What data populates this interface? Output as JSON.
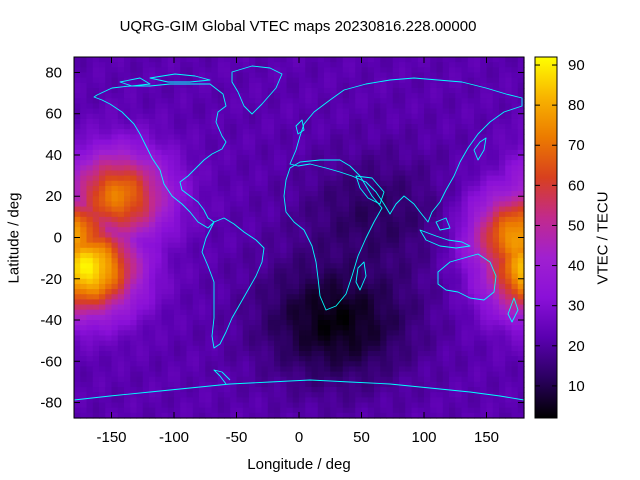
{
  "chart_data": {
    "type": "heatmap",
    "title": "UQRG-GIM Global VTEC maps 20230816.228.00000",
    "xlabel": "Longitude / deg",
    "ylabel": "Latitude / deg",
    "colorbar_label": "VTEC / TECU",
    "x_range": [
      -180,
      180
    ],
    "y_range": [
      -87.5,
      87.5
    ],
    "color_range": [
      2,
      92
    ],
    "x_ticks": [
      -150,
      -100,
      -50,
      0,
      50,
      100,
      150
    ],
    "y_ticks": [
      -80,
      -60,
      -40,
      -20,
      0,
      20,
      40,
      60,
      80
    ],
    "colorbar_ticks": [
      10,
      20,
      30,
      40,
      50,
      60,
      70,
      80,
      90
    ],
    "colormap": [
      "#000000",
      "#2b0060",
      "#5a00b0",
      "#8a10d8",
      "#a020d0",
      "#c22a8c",
      "#d8401e",
      "#ec7b00",
      "#f8b400",
      "#ffff00"
    ],
    "coastline_color": "#00ffff",
    "vtec_structure": {
      "background_tecu": 22,
      "peaks": [
        {
          "lon": -170,
          "lat": -15,
          "tecu": 90
        },
        {
          "lon": -145,
          "lat": 20,
          "tecu": 72
        },
        {
          "lon": 175,
          "lat": 0,
          "tecu": 80
        }
      ],
      "depletions": [
        {
          "lon": 30,
          "lat": -40,
          "tecu": 3
        },
        {
          "lon": 60,
          "lat": 10,
          "tecu": 12
        }
      ]
    }
  }
}
